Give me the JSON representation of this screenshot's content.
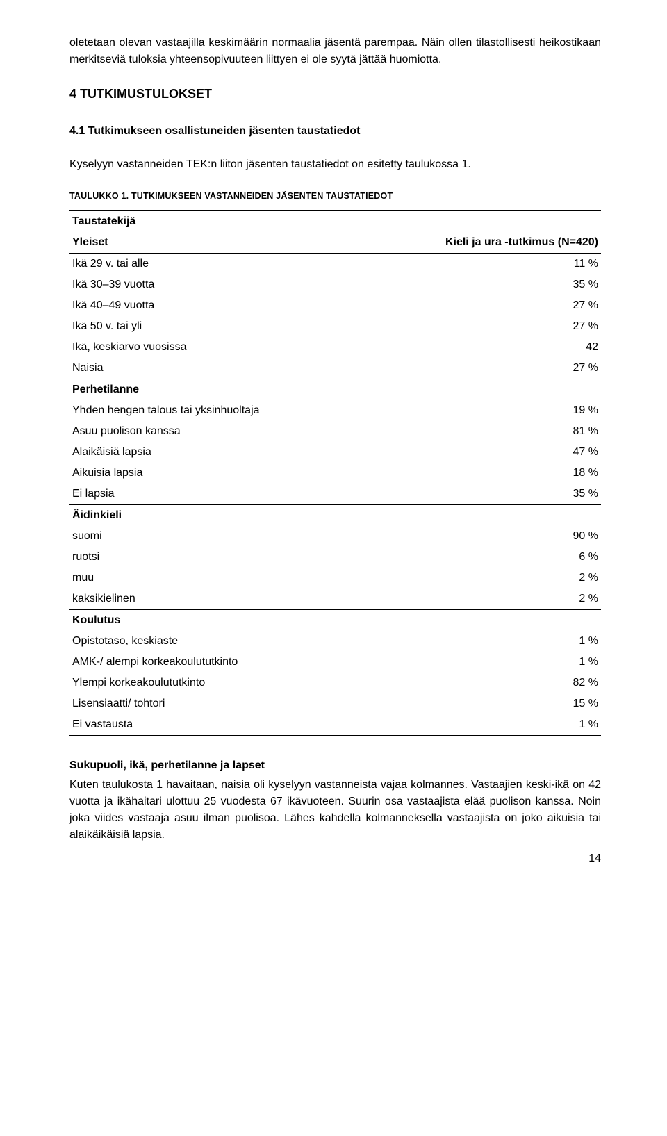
{
  "intro": "oletetaan olevan vastaajilla keskimäärin normaalia jäsentä parempaa. Näin ollen tilastollisesti heikostikaan merkitseviä tuloksia yhteensopivuuteen liittyen ei ole syytä jättää huomiotta.",
  "heading1": "4   TUTKIMUSTULOKSET",
  "heading2": "4.1 Tutkimukseen osallistuneiden jäsenten taustatiedot",
  "lead": "Kyselyyn vastanneiden TEK:n liiton jäsenten taustatiedot on esitetty taulukossa 1.",
  "tableCaption": "TAULUKKO 1. TUTKIMUKSEEN VASTANNEIDEN JÄSENTEN TAUSTATIEDOT",
  "hdr": {
    "left": "Taustatekijä",
    "yleiset": "Yleiset",
    "right": "Kieli ja ura -tutkimus (N=420)"
  },
  "sec": {
    "perhetilanne": "Perhetilanne",
    "aidinkieli": "Äidinkieli",
    "koulutus": "Koulutus"
  },
  "rows": {
    "r1": {
      "l": "Ikä 29 v. tai alle",
      "v": "11 %"
    },
    "r2": {
      "l": "Ikä 30–39 vuotta",
      "v": "35 %"
    },
    "r3": {
      "l": "Ikä 40–49 vuotta",
      "v": "27 %"
    },
    "r4": {
      "l": "Ikä 50 v. tai yli",
      "v": "27 %"
    },
    "r5": {
      "l": "Ikä, keskiarvo vuosissa",
      "v": "42"
    },
    "r6": {
      "l": "Naisia",
      "v": "27 %"
    },
    "r7": {
      "l": "Yhden hengen talous tai yksinhuoltaja",
      "v": "19 %"
    },
    "r8": {
      "l": "Asuu puolison kanssa",
      "v": "81 %"
    },
    "r9": {
      "l": "Alaikäisiä lapsia",
      "v": "47 %"
    },
    "r10": {
      "l": "Aikuisia lapsia",
      "v": "18 %"
    },
    "r11": {
      "l": "Ei lapsia",
      "v": "35 %"
    },
    "r12": {
      "l": "suomi",
      "v": "90 %"
    },
    "r13": {
      "l": "ruotsi",
      "v": "6 %"
    },
    "r14": {
      "l": "muu",
      "v": "2 %"
    },
    "r15": {
      "l": "kaksikielinen",
      "v": "2 %"
    },
    "r16": {
      "l": "Opistotaso, keskiaste",
      "v": "1 %"
    },
    "r17": {
      "l": "AMK-/ alempi korkeakoulututkinto",
      "v": "1 %"
    },
    "r18": {
      "l": "Ylempi korkeakoulututkinto",
      "v": "82 %"
    },
    "r19": {
      "l": "Lisensiaatti/ tohtori",
      "v": "15 %"
    },
    "r20": {
      "l": "Ei vastausta",
      "v": "1 %"
    }
  },
  "subhead2": "Sukupuoli, ikä, perhetilanne ja lapset",
  "para2": "Kuten taulukosta 1 havaitaan, naisia oli kyselyyn vastanneista vajaa kolmannes. Vastaajien keski-ikä on 42 vuotta ja ikähaitari ulottuu 25 vuodesta 67 ikävuoteen. Suurin osa vastaajista elää puolison kanssa. Noin joka viides vastaaja asuu ilman puolisoa. Lähes kahdella kolmanneksella vastaajista on joko aikuisia tai alaikäikäisiä lapsia.",
  "pagenum": "14"
}
